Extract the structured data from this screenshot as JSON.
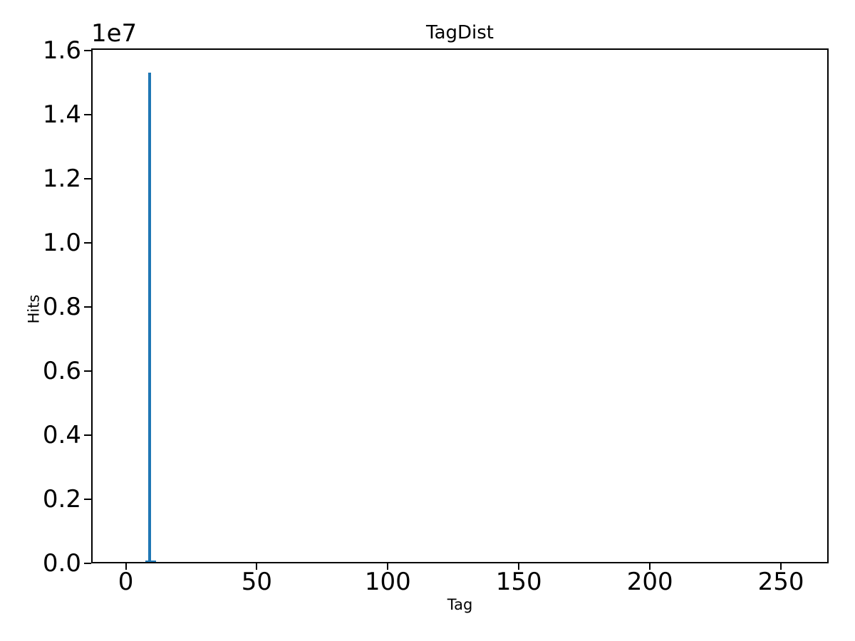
{
  "figure": {
    "background": "#ffffff",
    "text_color": "#000000"
  },
  "chart_data": {
    "type": "bar",
    "title": "TagDist",
    "xlabel": "Tag",
    "ylabel": "Hits",
    "y_offset_text": "1e7",
    "xlim": [
      -13.2,
      268.2
    ],
    "ylim": [
      0,
      16070000
    ],
    "x_ticks": [
      0,
      50,
      100,
      150,
      200,
      250
    ],
    "x_tick_labels": [
      "0",
      "50",
      "100",
      "150",
      "200",
      "250"
    ],
    "y_ticks": [
      0,
      2000000,
      4000000,
      6000000,
      8000000,
      10000000,
      12000000,
      14000000,
      16000000
    ],
    "y_tick_labels": [
      "0.0",
      "0.2",
      "0.4",
      "0.6",
      "0.8",
      "1.0",
      "1.2",
      "1.4",
      "1.6"
    ],
    "grid": false,
    "legend": null,
    "bar_color": "#1f77b4",
    "bars": [
      {
        "tag": 8,
        "hits": 90000
      },
      {
        "tag": 9,
        "hits": 15310000
      },
      {
        "tag": 10,
        "hits": 90000
      },
      {
        "tag": 11,
        "hits": 90000
      }
    ]
  }
}
